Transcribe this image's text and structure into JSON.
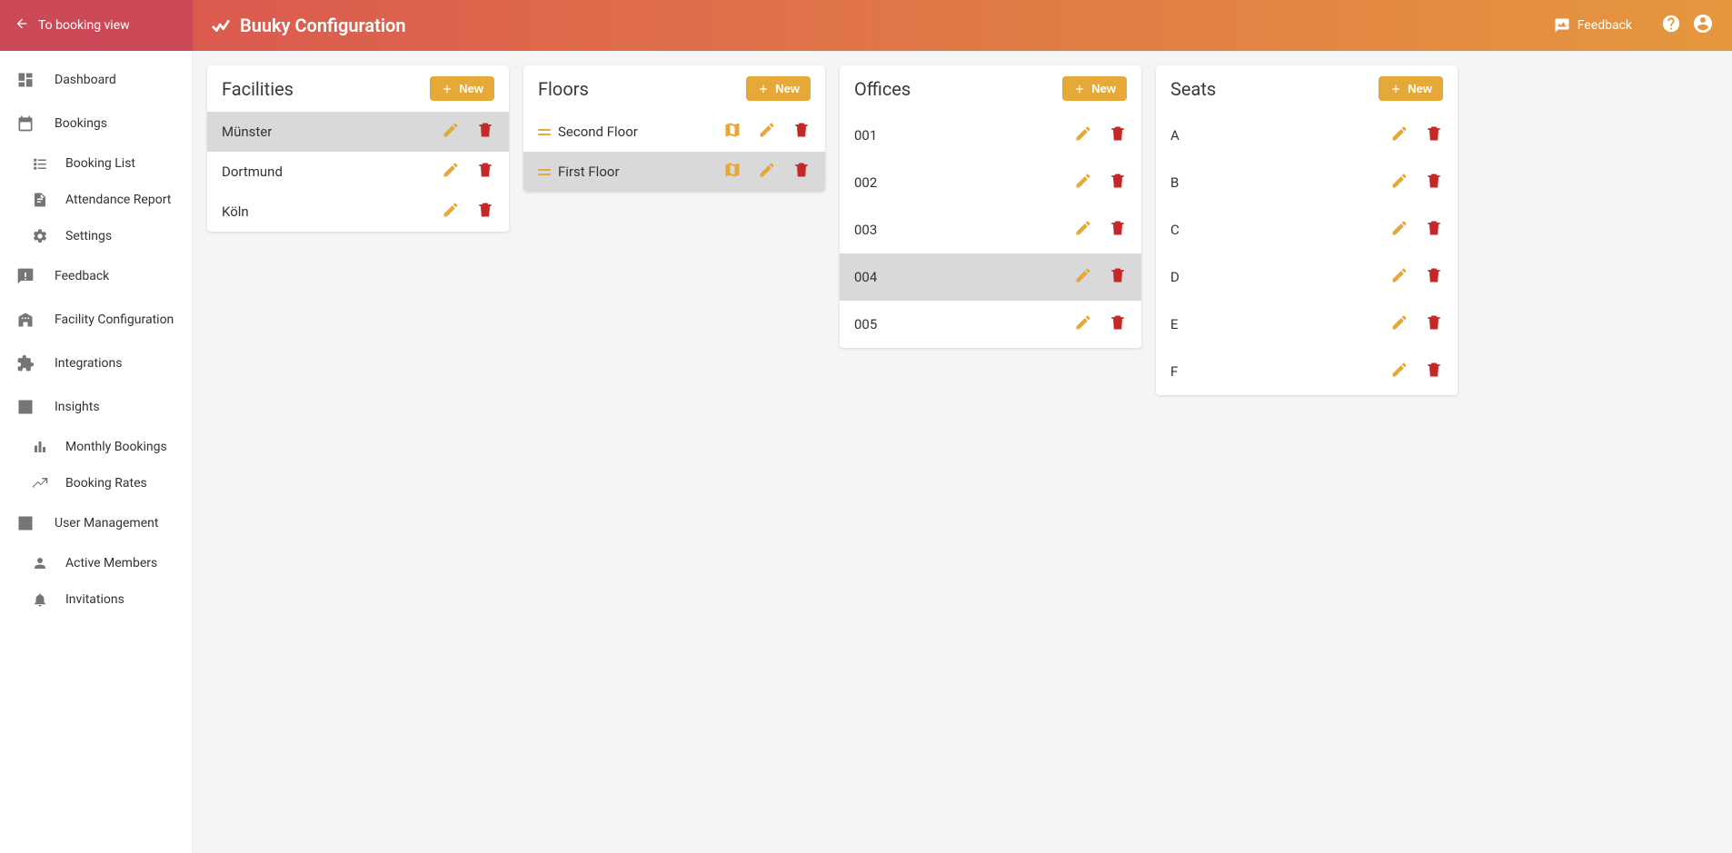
{
  "colors": {
    "topbar_left_bg": "#cc4957",
    "topbar_gradient_start": "#db5a4f",
    "topbar_gradient_end": "#e5973e",
    "accent": "#e6a937",
    "pencil": "#e6a937",
    "trash": "#c62828",
    "map_icon": "#e6a937",
    "nav_icon": "#757575",
    "selected_row": "#d9d9d9",
    "page_bg": "#f5f5f5",
    "panel_bg": "#ffffff"
  },
  "topbar": {
    "back_label": "To booking view",
    "title": "Buuky Configuration",
    "feedback_label": "Feedback"
  },
  "sidebar": {
    "dashboard": "Dashboard",
    "bookings": "Bookings",
    "booking_list": "Booking List",
    "attendance_report": "Attendance Report",
    "settings": "Settings",
    "feedback": "Feedback",
    "facility_configuration": "Facility Configuration",
    "integrations": "Integrations",
    "insights": "Insights",
    "monthly_bookings": "Monthly Bookings",
    "booking_rates": "Booking Rates",
    "user_management": "User Management",
    "active_members": "Active Members",
    "invitations": "Invitations"
  },
  "panels": {
    "new_label": "New",
    "facilities": {
      "title": "Facilities",
      "items": [
        {
          "label": "Münster",
          "selected": true
        },
        {
          "label": "Dortmund",
          "selected": false
        },
        {
          "label": "Köln",
          "selected": false
        }
      ]
    },
    "floors": {
      "title": "Floors",
      "items": [
        {
          "label": "Second Floor",
          "selected": false
        },
        {
          "label": "First Floor",
          "selected": true
        }
      ]
    },
    "offices": {
      "title": "Offices",
      "items": [
        {
          "label": "001",
          "selected": false
        },
        {
          "label": "002",
          "selected": false
        },
        {
          "label": "003",
          "selected": false
        },
        {
          "label": "004",
          "selected": true
        },
        {
          "label": "005",
          "selected": false
        }
      ]
    },
    "seats": {
      "title": "Seats",
      "items": [
        {
          "label": "A",
          "selected": false
        },
        {
          "label": "B",
          "selected": false
        },
        {
          "label": "C",
          "selected": false
        },
        {
          "label": "D",
          "selected": false
        },
        {
          "label": "E",
          "selected": false
        },
        {
          "label": "F",
          "selected": false
        }
      ]
    }
  }
}
